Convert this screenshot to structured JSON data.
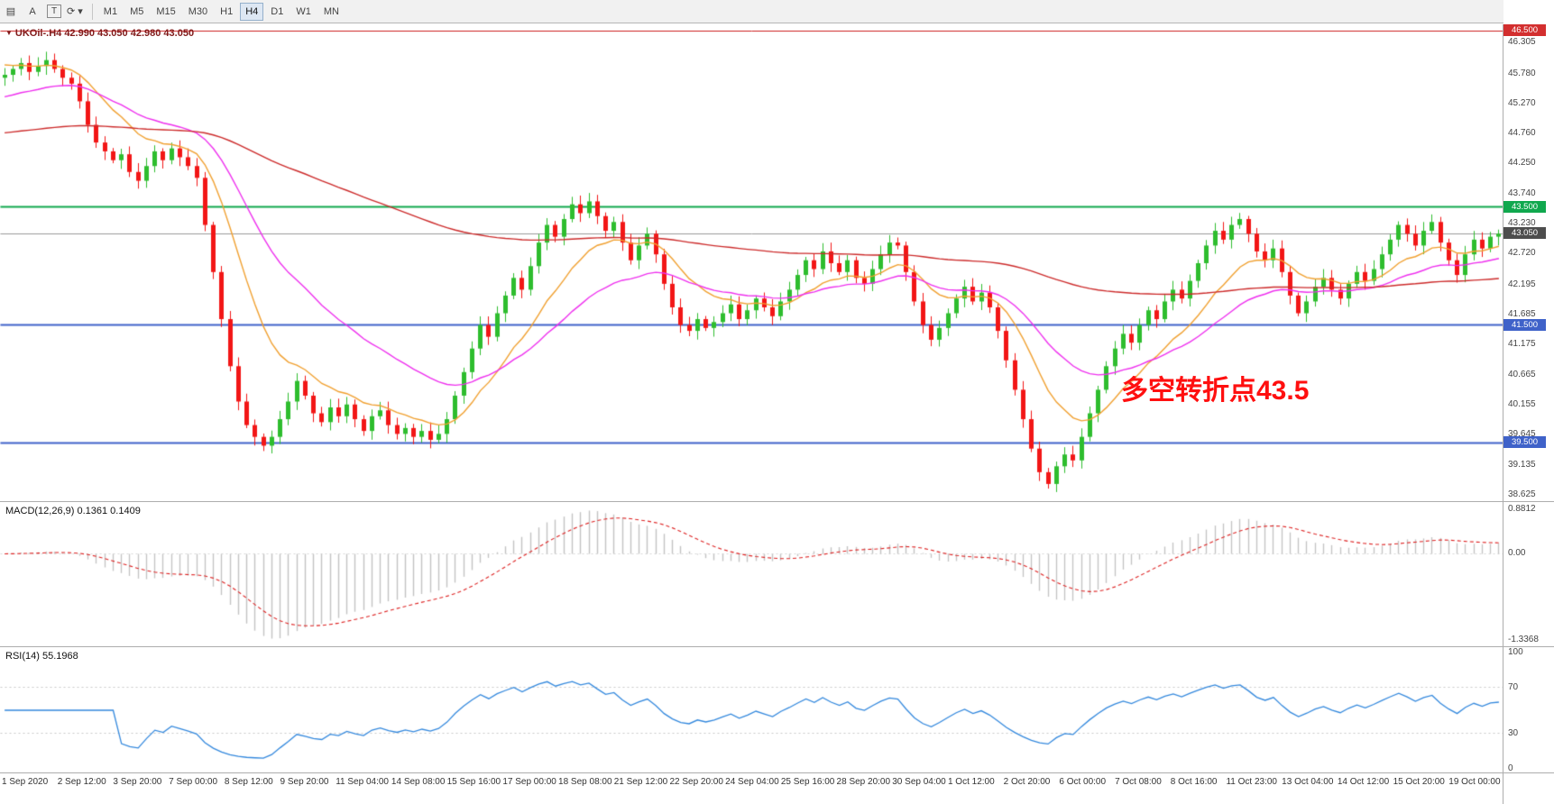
{
  "toolbar": {
    "icon_buttons": [
      {
        "id": "chart-window",
        "glyph": "▤"
      },
      {
        "id": "cursor-arrow",
        "glyph": "A"
      },
      {
        "id": "text-tool",
        "glyph": "T",
        "boxed": true
      },
      {
        "id": "cycle-symbols",
        "glyph": "⟳",
        "caret": "▾"
      }
    ],
    "timeframes": [
      "M1",
      "M5",
      "M15",
      "M30",
      "H1",
      "H4",
      "D1",
      "W1",
      "MN"
    ],
    "active_timeframe": "H4"
  },
  "chart": {
    "marker": "▼",
    "title": "UKOil-.H4 42.990 43.050 42.980 43.050",
    "annotation": "多空转折点43.5",
    "price_axis_labels": [
      "46.305",
      "45.780",
      "45.270",
      "44.760",
      "44.250",
      "43.740",
      "43.230",
      "42.720",
      "42.195",
      "41.685",
      "41.175",
      "40.665",
      "40.155",
      "39.645",
      "39.135",
      "38.625"
    ],
    "price_badges": [
      {
        "label": "46.500",
        "price": 46.5,
        "color": "#d32f2f"
      },
      {
        "label": "43.500",
        "price": 43.5,
        "color": "#10a84e"
      },
      {
        "label": "43.050",
        "price": 43.05,
        "color": "#4d4d4d"
      },
      {
        "label": "41.500",
        "price": 41.5,
        "color": "#3f62c9"
      },
      {
        "label": "39.500",
        "price": 39.5,
        "color": "#3f62c9"
      }
    ],
    "hlines": [
      {
        "price": 46.5,
        "color": "#cc1f1f",
        "width": 1
      },
      {
        "price": 43.5,
        "color": "#10a84e",
        "width": 2
      },
      {
        "price": 41.5,
        "color": "#3f62c9",
        "width": 2
      },
      {
        "price": 39.5,
        "color": "#3f62c9",
        "width": 2
      }
    ],
    "current_price_line": {
      "price": 43.05,
      "color": "#9a9a9a"
    }
  },
  "macd_panel": {
    "label": "MACD(12,26,9) 0.1361 0.1409",
    "axis_max": "0.8812",
    "axis_zero": "0.00",
    "axis_min": "-1.3368"
  },
  "rsi_panel": {
    "label": "RSI(14) 55.1968",
    "axis": [
      "100",
      "70",
      "30",
      "0"
    ]
  },
  "time_axis": [
    "1 Sep 2020",
    "2 Sep 12:00",
    "3 Sep 20:00",
    "7 Sep 00:00",
    "8 Sep 12:00",
    "9 Sep 20:00",
    "11 Sep 04:00",
    "14 Sep 08:00",
    "15 Sep 16:00",
    "17 Sep 00:00",
    "18 Sep 08:00",
    "21 Sep 12:00",
    "22 Sep 20:00",
    "24 Sep 04:00",
    "25 Sep 16:00",
    "28 Sep 20:00",
    "30 Sep 04:00",
    "1 Oct 12:00",
    "2 Oct 20:00",
    "6 Oct 00:00",
    "7 Oct 08:00",
    "8 Oct 16:00",
    "11 Oct 23:00",
    "13 Oct 04:00",
    "14 Oct 12:00",
    "15 Oct 20:00",
    "19 Oct 00:00"
  ],
  "chart_data": {
    "type": "candlestick",
    "symbol": "UKOil-",
    "timeframe": "H4",
    "last_ohlc": {
      "open": 42.99,
      "high": 43.05,
      "low": 42.98,
      "close": 43.05
    },
    "price_range": [
      38.5,
      46.6
    ],
    "first_open": 45.7,
    "closes": [
      45.75,
      45.85,
      45.95,
      45.8,
      45.9,
      46.0,
      45.85,
      45.7,
      45.6,
      45.3,
      44.9,
      44.6,
      44.45,
      44.3,
      44.4,
      44.1,
      43.95,
      44.2,
      44.45,
      44.3,
      44.5,
      44.35,
      44.2,
      44.0,
      43.2,
      42.4,
      41.6,
      40.8,
      40.2,
      39.8,
      39.6,
      39.45,
      39.6,
      39.9,
      40.2,
      40.55,
      40.3,
      40.0,
      39.85,
      40.1,
      39.95,
      40.15,
      39.9,
      39.7,
      39.95,
      40.05,
      39.8,
      39.65,
      39.75,
      39.6,
      39.7,
      39.55,
      39.65,
      39.9,
      40.3,
      40.7,
      41.1,
      41.5,
      41.3,
      41.7,
      42.0,
      42.3,
      42.1,
      42.5,
      42.9,
      43.2,
      43.0,
      43.3,
      43.55,
      43.4,
      43.6,
      43.35,
      43.1,
      43.25,
      42.9,
      42.6,
      42.85,
      43.05,
      42.7,
      42.2,
      41.8,
      41.5,
      41.4,
      41.6,
      41.45,
      41.55,
      41.7,
      41.85,
      41.6,
      41.75,
      41.95,
      41.8,
      41.65,
      41.9,
      42.1,
      42.35,
      42.6,
      42.45,
      42.75,
      42.55,
      42.4,
      42.6,
      42.3,
      42.2,
      42.45,
      42.7,
      42.9,
      42.85,
      42.4,
      41.9,
      41.5,
      41.25,
      41.45,
      41.7,
      41.95,
      42.15,
      41.9,
      42.05,
      41.8,
      41.4,
      40.9,
      40.4,
      39.9,
      39.4,
      39.0,
      38.8,
      39.1,
      39.3,
      39.2,
      39.6,
      40.0,
      40.4,
      40.8,
      41.1,
      41.35,
      41.2,
      41.5,
      41.75,
      41.6,
      41.9,
      42.1,
      41.95,
      42.25,
      42.55,
      42.85,
      43.1,
      42.95,
      43.2,
      43.3,
      43.05,
      42.75,
      42.6,
      42.8,
      42.4,
      42.0,
      41.7,
      41.9,
      42.15,
      42.3,
      42.1,
      41.95,
      42.2,
      42.4,
      42.25,
      42.45,
      42.7,
      42.95,
      43.2,
      43.05,
      42.85,
      43.1,
      43.25,
      42.9,
      42.6,
      42.35,
      42.7,
      42.95,
      42.8,
      43.0,
      43.05
    ],
    "up_color": "#2ebd2e",
    "down_color": "#f21616",
    "moving_averages": [
      {
        "period": 12,
        "seed": 45.95,
        "color": "#f0a030"
      },
      {
        "period": 28,
        "seed": 45.35,
        "color": "#ee30ee"
      },
      {
        "period": 140,
        "seed": 44.75,
        "color": "#cc2a2a"
      }
    ],
    "macd": {
      "fast": 12,
      "slow": 26,
      "signal": 9,
      "hist_color": "#c4c4c4",
      "signal_color": "#dd2222"
    },
    "rsi": {
      "period": 14,
      "levels": [
        70,
        30
      ],
      "color": "#3388dd"
    }
  }
}
